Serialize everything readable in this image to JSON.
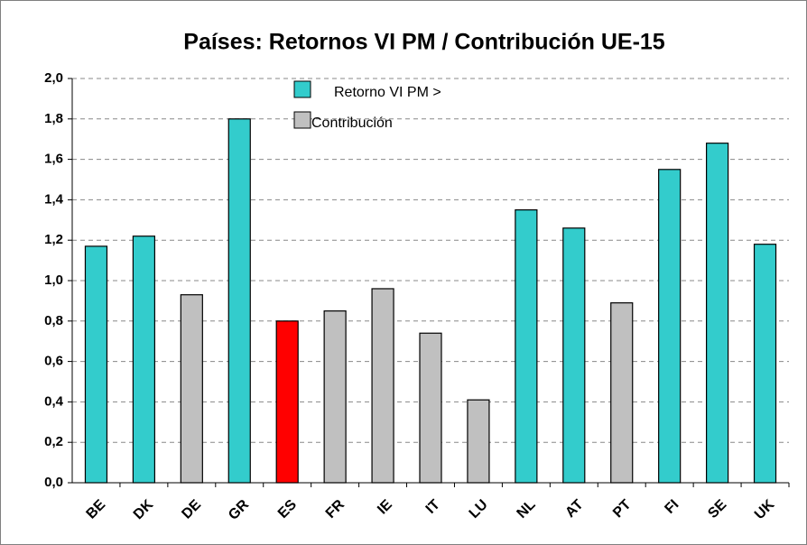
{
  "chart_data": {
    "type": "bar",
    "title": "Países: Retornos VI PM / Contribución UE-15",
    "categories": [
      "BE",
      "DK",
      "DE",
      "GR",
      "ES",
      "FR",
      "IE",
      "IT",
      "LU",
      "NL",
      "AT",
      "PT",
      "FI",
      "SE",
      "UK"
    ],
    "values": [
      1.17,
      1.22,
      0.93,
      1.8,
      0.8,
      0.85,
      0.96,
      0.74,
      0.41,
      1.35,
      1.26,
      0.89,
      1.55,
      1.68,
      1.18
    ],
    "colors": [
      "#33CCCC",
      "#33CCCC",
      "#C0C0C0",
      "#33CCCC",
      "#FF0000",
      "#C0C0C0",
      "#C0C0C0",
      "#C0C0C0",
      "#C0C0C0",
      "#33CCCC",
      "#33CCCC",
      "#C0C0C0",
      "#33CCCC",
      "#33CCCC",
      "#33CCCC"
    ],
    "legend": [
      {
        "name": "Retorno VI PM >",
        "color": "#33CCCC"
      },
      {
        "name": "Contribución",
        "color": "#C0C0C0"
      }
    ],
    "ylim": [
      0,
      2
    ],
    "yticks": [
      {
        "value": 0,
        "label": "0,0"
      },
      {
        "value": 0.2,
        "label": "0,2"
      },
      {
        "value": 0.4,
        "label": "0,4"
      },
      {
        "value": 0.6,
        "label": "0,6"
      },
      {
        "value": 0.8,
        "label": "0,8"
      },
      {
        "value": 1.0,
        "label": "1,0"
      },
      {
        "value": 1.2,
        "label": "1,2"
      },
      {
        "value": 1.4,
        "label": "1,4"
      },
      {
        "value": 1.6,
        "label": "1,6"
      },
      {
        "value": 1.8,
        "label": "1,8"
      },
      {
        "value": 2.0,
        "label": "2,0"
      }
    ],
    "grid": true
  }
}
